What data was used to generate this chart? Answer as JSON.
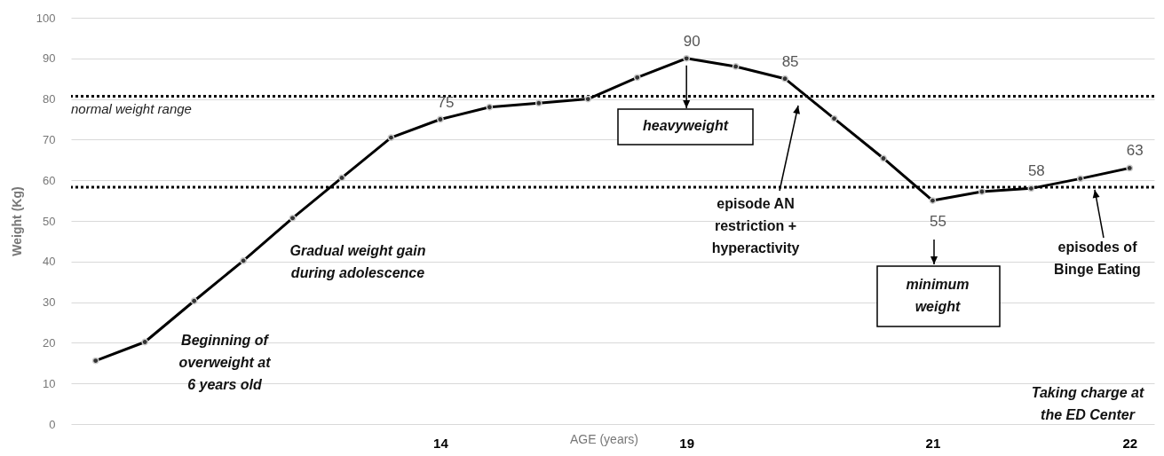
{
  "chart_data": {
    "type": "line",
    "xlabel": "AGE (years)",
    "ylabel": "Weight (Kg)",
    "categories": [
      null,
      null,
      null,
      null,
      null,
      null,
      null,
      "14",
      null,
      null,
      null,
      null,
      "19",
      null,
      null,
      null,
      null,
      "21",
      null,
      null,
      null,
      "22"
    ],
    "series": [
      {
        "color": "#000000",
        "values": [
          15.6,
          20.2,
          30.3,
          40.2,
          50.7,
          60.6,
          70.5,
          75,
          78,
          79,
          80,
          85.3,
          90,
          88,
          85,
          75.2,
          65.4,
          55,
          57.2,
          58,
          60.4,
          63
        ],
        "value_labels": [
          null,
          null,
          null,
          null,
          null,
          null,
          null,
          "75",
          null,
          null,
          null,
          null,
          "90",
          null,
          "85",
          null,
          null,
          "55",
          null,
          "58",
          null,
          "63"
        ]
      }
    ],
    "ylim": [
      0,
      100
    ],
    "yticks": [
      0,
      10,
      20,
      30,
      40,
      50,
      60,
      70,
      80,
      90,
      100
    ],
    "grid": "y",
    "marker": "circle",
    "line_style": "solid",
    "ref_lines": [
      {
        "axis": "y",
        "value": 80.7,
        "label": "normal weight range",
        "color": "#000000",
        "line_style": "dotted"
      },
      {
        "axis": "y",
        "value": 58.3,
        "color": "#000000",
        "line_style": "dotted"
      }
    ],
    "annotations": [
      "Beginning of\noverweight at\n6 years old",
      "Gradual weight gain\nduring adolescence",
      {
        "text": "heavyweight",
        "x": "19",
        "y": 90
      },
      "episode AN\nrestriction +\nhyperactivity",
      "minimum\nweight",
      {
        "text": "episodes of\nBinge Eating",
        "y": 58.3
      },
      "Taking charge at\nthe ED Center"
    ]
  }
}
